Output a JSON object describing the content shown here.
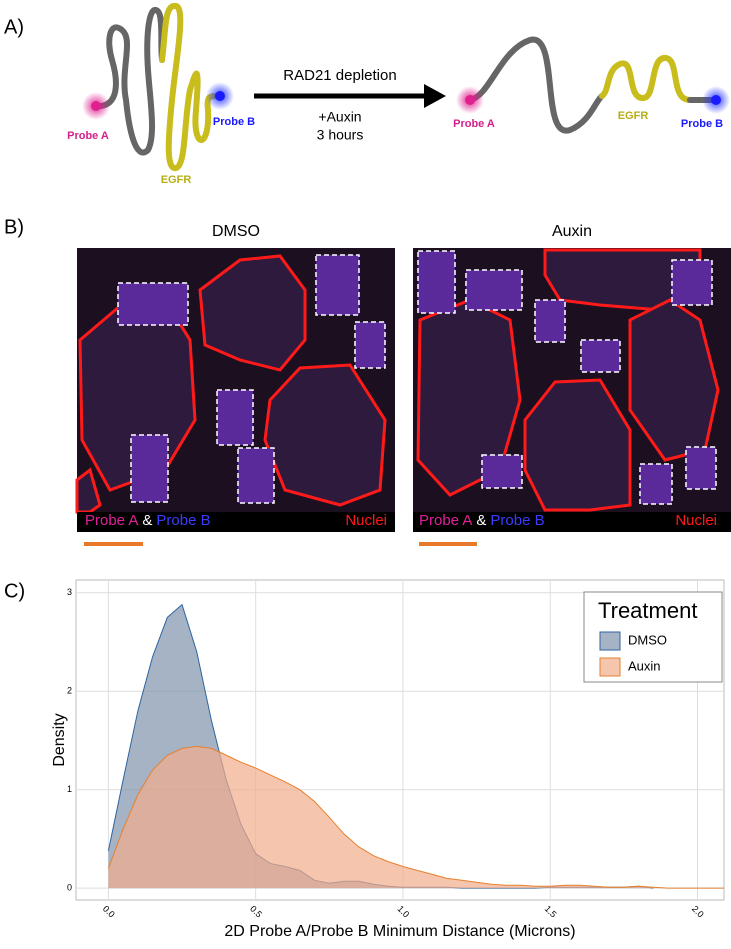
{
  "panel_a": {
    "label": "A)",
    "arrow_label": "RAD21 depletion",
    "treatment": "+Auxin",
    "duration": "3 hours",
    "before": {
      "probe_a": "Probe A",
      "probe_b": "Probe B",
      "gene": "EGFR"
    },
    "after": {
      "probe_a": "Probe A",
      "probe_b": "Probe B",
      "gene": "EGFR"
    }
  },
  "panel_b": {
    "label": "B)",
    "images": [
      {
        "title": "DMSO",
        "legend": {
          "probe_a": "Probe A",
          "and": "&",
          "probe_b": "Probe B",
          "nuclei": "Nuclei"
        }
      },
      {
        "title": "Auxin",
        "legend": {
          "probe_a": "Probe A",
          "and": "&",
          "probe_b": "Probe B",
          "nuclei": "Nuclei"
        }
      }
    ]
  },
  "chart_data": {
    "type": "area",
    "label": "C)",
    "x_label": "2D Probe A/Probe B Minimum Distance (Microns)",
    "y_label": "Density",
    "legend_title": "Treatment",
    "legend_position": "top-right",
    "grid": true,
    "xlim": [
      -0.11,
      2.09
    ],
    "ylim": [
      -0.12,
      3.13
    ],
    "xticks": [
      {
        "value": 0,
        "label": "0.0"
      },
      0.5,
      {
        "value": 1,
        "label": "1.0"
      },
      1.5,
      {
        "value": 2,
        "label": "2.0"
      }
    ],
    "yticks": [
      0,
      1,
      2,
      3
    ],
    "x": [
      0,
      0.05,
      0.1,
      0.15,
      0.2,
      0.25,
      0.3,
      0.35,
      0.4,
      0.45,
      0.5,
      0.55,
      0.6,
      0.65,
      0.7,
      0.75,
      0.8,
      0.85,
      0.9,
      0.95,
      1,
      1.05,
      1.1,
      1.15,
      1.2,
      1.25,
      1.3,
      1.35,
      1.4,
      1.45,
      1.5,
      1.55,
      1.6,
      1.65,
      1.7,
      1.75,
      1.8,
      1.85,
      1.9,
      1.95,
      2,
      2.05,
      2.09
    ],
    "series": [
      {
        "name": "DMSO",
        "color": "#2f64a0",
        "fill": "#7f93ad",
        "values": [
          0.38,
          1.1,
          1.8,
          2.35,
          2.75,
          2.88,
          2.4,
          1.7,
          1.1,
          0.65,
          0.35,
          0.25,
          0.22,
          0.18,
          0.08,
          0.05,
          0.07,
          0.07,
          0.04,
          0.02,
          0.01,
          0.01,
          0.01,
          0.01,
          0,
          0,
          0,
          0,
          0,
          0,
          0.01,
          0.01,
          0.01,
          0.01,
          0.01,
          0.01,
          0.02,
          0,
          null,
          null,
          null,
          null,
          null
        ]
      },
      {
        "name": "Auxin",
        "color": "#e6802f",
        "fill": "#f2ad8c",
        "values": [
          0.2,
          0.6,
          0.95,
          1.2,
          1.35,
          1.42,
          1.44,
          1.42,
          1.35,
          1.28,
          1.22,
          1.15,
          1.08,
          1.0,
          0.88,
          0.72,
          0.55,
          0.42,
          0.33,
          0.27,
          0.22,
          0.18,
          0.14,
          0.1,
          0.08,
          0.06,
          0.04,
          0.03,
          0.03,
          0.02,
          0.02,
          0.03,
          0.03,
          0.02,
          0.01,
          0.01,
          0.02,
          0.01,
          0,
          0,
          0,
          0,
          0
        ]
      }
    ]
  }
}
